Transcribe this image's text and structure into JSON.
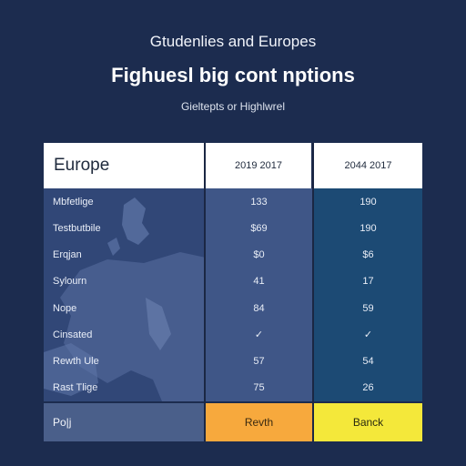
{
  "header": {
    "kicker": "Gtudenlies and Europes",
    "title": "Fighuesl big cont nptions",
    "subtitle": "Gieltepts or Highlwrel"
  },
  "table": {
    "columns": [
      "Europe",
      "2019 2017",
      "2044 2017"
    ],
    "rows": [
      {
        "label": "Mbfetlige",
        "a": "133",
        "b": "190"
      },
      {
        "label": "Testbutbile",
        "a": "$69",
        "b": "190"
      },
      {
        "label": "Erqjan",
        "a": "$0",
        "b": "$6"
      },
      {
        "label": "Sylourn",
        "a": "41",
        "b": "17"
      },
      {
        "label": "Nope",
        "a": "84",
        "b": "59"
      },
      {
        "label": "Cinsated",
        "a": "✓",
        "b": "✓"
      },
      {
        "label": "Rewth Ule",
        "a": "57",
        "b": "54"
      },
      {
        "label": "Rast Tlige",
        "a": "75",
        "b": "26"
      }
    ],
    "footer": {
      "label": "Po|j",
      "a": "Revth",
      "b": "Banck"
    }
  },
  "colors": {
    "background": "#1c2c4f",
    "region_col": "#314777",
    "col_a": "#3f5687",
    "col_b": "#1c4a74",
    "btn_orange": "#f7a93d",
    "btn_yellow": "#f4e83a"
  }
}
